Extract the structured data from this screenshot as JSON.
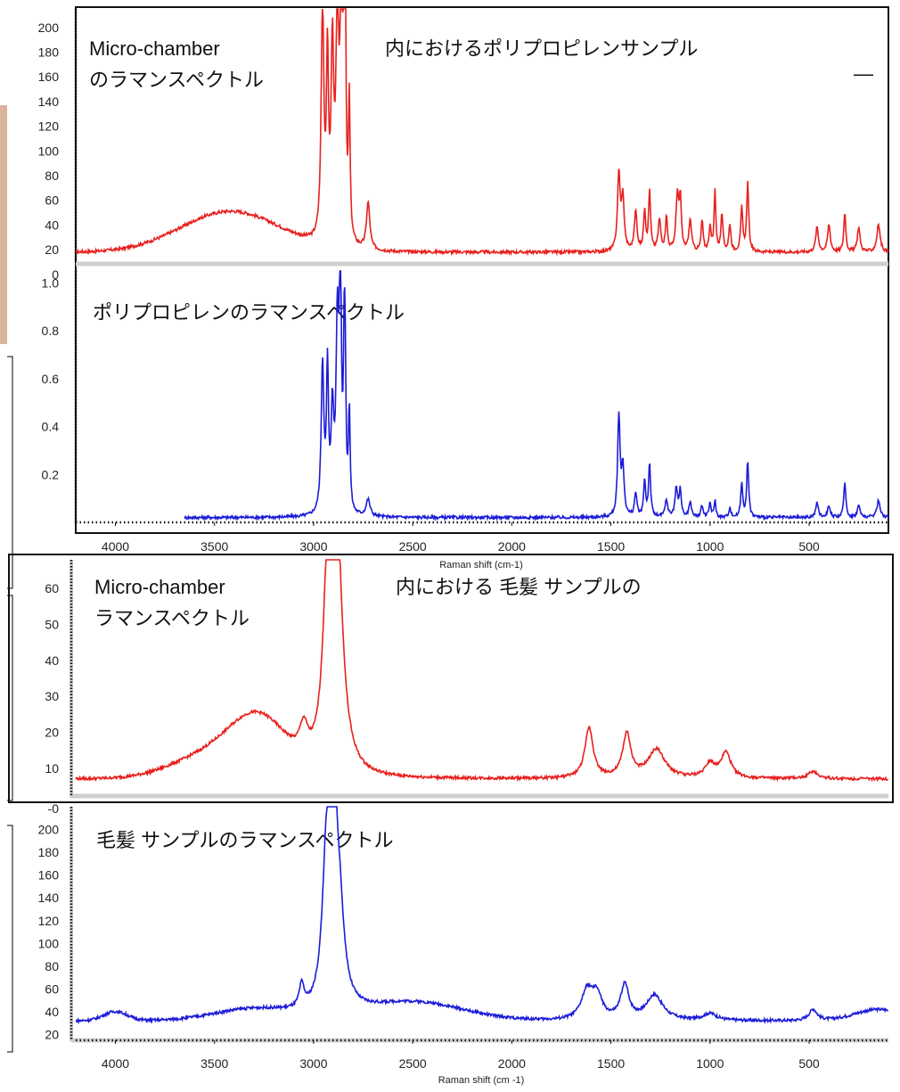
{
  "chart_data": [
    {
      "type": "line",
      "title_line1": "Micro-chamber",
      "title_line2": "のラマンスペクトル",
      "title_right": "内におけるポリプロピレンサンプル",
      "dash": "—",
      "x_range": [
        4200,
        100
      ],
      "ylim": [
        10,
        215
      ],
      "yticks": [
        "200",
        "180",
        "160",
        "140",
        "120",
        "100",
        "80",
        "60",
        "40",
        "20"
      ],
      "ytick_values": [
        200,
        180,
        160,
        140,
        120,
        100,
        80,
        60,
        40,
        20
      ],
      "color": "#e8201e",
      "peaks_x": [
        3650,
        3400,
        3150,
        2960,
        2940,
        2925,
        2905,
        2885,
        2870,
        2855,
        2845,
        2840,
        2830,
        2820,
        2810,
        2720,
        1460,
        1440,
        1370,
        1330,
        1305,
        1220,
        1165,
        1150,
        1100,
        1040,
        1000,
        975,
        900,
        840,
        810,
        800,
        460,
        400,
        320,
        250,
        150
      ],
      "peaks": [
        [
          2955,
          190,
          8
        ],
        [
          2930,
          140,
          6
        ],
        [
          2905,
          150,
          8
        ],
        [
          2880,
          185,
          8
        ],
        [
          2860,
          210,
          7
        ],
        [
          2845,
          190,
          5
        ],
        [
          2840,
          130,
          4
        ],
        [
          2820,
          110,
          5
        ],
        [
          2725,
          38,
          10
        ],
        [
          1460,
          62,
          8
        ],
        [
          1440,
          42,
          8
        ],
        [
          1375,
          32,
          8
        ],
        [
          1330,
          33,
          6
        ],
        [
          1305,
          48,
          6
        ],
        [
          1255,
          25,
          8
        ],
        [
          1220,
          28,
          6
        ],
        [
          1165,
          45,
          8
        ],
        [
          1150,
          40,
          6
        ],
        [
          1100,
          25,
          8
        ],
        [
          1040,
          25,
          6
        ],
        [
          1000,
          20,
          6
        ],
        [
          975,
          50,
          5
        ],
        [
          940,
          30,
          6
        ],
        [
          900,
          22,
          6
        ],
        [
          840,
          35,
          6
        ],
        [
          810,
          55,
          6
        ],
        [
          460,
          20,
          8
        ],
        [
          400,
          22,
          8
        ],
        [
          320,
          32,
          6
        ],
        [
          250,
          20,
          8
        ],
        [
          150,
          22,
          10
        ]
      ],
      "baseline": 18,
      "broad": [
        [
          3420,
          33,
          250
        ]
      ]
    },
    {
      "type": "line",
      "title": "ポリプロピレンのラマンスペクトル",
      "x_range": [
        4200,
        100
      ],
      "ylim": [
        0,
        1.05
      ],
      "y_zero_label": "0",
      "yticks": [
        "1.0",
        "0.8",
        "0.6",
        "0.4",
        "0.2"
      ],
      "ytick_values": [
        1.0,
        0.8,
        0.6,
        0.4,
        0.2
      ],
      "xticks": [
        "4000",
        "3500",
        "3000",
        "2500",
        "2000",
        "1500",
        "1000",
        "500"
      ],
      "xtick_values": [
        4000,
        3500,
        3000,
        2500,
        2000,
        1500,
        1000,
        500
      ],
      "xlabel": "Raman shift (cm-1)",
      "color": "#1c1cd8",
      "peaks": [
        [
          2955,
          0.62,
          8
        ],
        [
          2930,
          0.58,
          6
        ],
        [
          2905,
          0.4,
          8
        ],
        [
          2880,
          0.75,
          8
        ],
        [
          2865,
          1.02,
          6
        ],
        [
          2845,
          0.7,
          5
        ],
        [
          2840,
          0.35,
          4
        ],
        [
          2820,
          0.42,
          5
        ],
        [
          2725,
          0.07,
          12
        ],
        [
          1460,
          0.42,
          7
        ],
        [
          1440,
          0.2,
          8
        ],
        [
          1375,
          0.1,
          7
        ],
        [
          1330,
          0.15,
          6
        ],
        [
          1305,
          0.22,
          6
        ],
        [
          1220,
          0.07,
          8
        ],
        [
          1170,
          0.12,
          8
        ],
        [
          1150,
          0.11,
          6
        ],
        [
          1100,
          0.06,
          8
        ],
        [
          1040,
          0.05,
          6
        ],
        [
          1000,
          0.06,
          6
        ],
        [
          975,
          0.07,
          5
        ],
        [
          900,
          0.04,
          6
        ],
        [
          840,
          0.14,
          6
        ],
        [
          810,
          0.23,
          6
        ],
        [
          460,
          0.06,
          8
        ],
        [
          400,
          0.05,
          8
        ],
        [
          320,
          0.15,
          6
        ],
        [
          250,
          0.05,
          8
        ],
        [
          150,
          0.07,
          10
        ]
      ],
      "baseline": 0.02,
      "start_x": 3650
    },
    {
      "type": "line",
      "title_line1": "Micro-chamber",
      "title_line2": "ラマンスペクトル",
      "title_right": "内における 毛髪 サンプルの",
      "x_range": [
        4200,
        100
      ],
      "ylim": [
        2.5,
        68
      ],
      "y_zero_label": "-0",
      "yticks": [
        "60",
        "50",
        "40",
        "30",
        "20",
        "10"
      ],
      "ytick_values": [
        60,
        50,
        40,
        30,
        20,
        10
      ],
      "color": "#e8201e",
      "peaks": [
        [
          2935,
          30,
          25
        ],
        [
          2900,
          55,
          28
        ],
        [
          2880,
          40,
          35
        ],
        [
          3050,
          8,
          25
        ],
        [
          1610,
          14,
          25
        ],
        [
          1420,
          12,
          25
        ],
        [
          1270,
          8,
          50
        ],
        [
          1000,
          4,
          30
        ],
        [
          920,
          7,
          30
        ],
        [
          480,
          2,
          30
        ]
      ],
      "baseline": 7,
      "broad": [
        [
          3270,
          14,
          140
        ],
        [
          3500,
          7,
          200
        ]
      ]
    },
    {
      "type": "line",
      "title": "毛髪 サンプルのラマンスペクトル",
      "x_range": [
        4200,
        100
      ],
      "ylim": [
        15,
        220
      ],
      "yticks": [
        "200",
        "180",
        "160",
        "140",
        "120",
        "100",
        "80",
        "60",
        "40",
        "20"
      ],
      "ytick_values": [
        200,
        180,
        160,
        140,
        120,
        100,
        80,
        60,
        40,
        20
      ],
      "xticks": [
        "4000",
        "3500",
        "3000",
        "2500",
        "2000",
        "1500",
        "1000",
        "500"
      ],
      "xtick_values": [
        4000,
        3500,
        3000,
        2500,
        2000,
        1500,
        1000,
        500
      ],
      "xlabel": "Raman shift (cm -1)",
      "color": "#1c1cd8",
      "peaks": [
        [
          2935,
          120,
          25
        ],
        [
          2900,
          160,
          22
        ],
        [
          2870,
          70,
          30
        ],
        [
          3060,
          20,
          15
        ],
        [
          1620,
          25,
          35
        ],
        [
          1570,
          20,
          30
        ],
        [
          1430,
          30,
          25
        ],
        [
          1280,
          22,
          50
        ],
        [
          1000,
          6,
          40
        ],
        [
          480,
          10,
          25
        ]
      ],
      "baseline": 32,
      "broad": [
        [
          4000,
          8,
          60
        ],
        [
          3300,
          10,
          200
        ],
        [
          2500,
          16,
          250
        ],
        [
          150,
          10,
          120
        ]
      ]
    }
  ]
}
